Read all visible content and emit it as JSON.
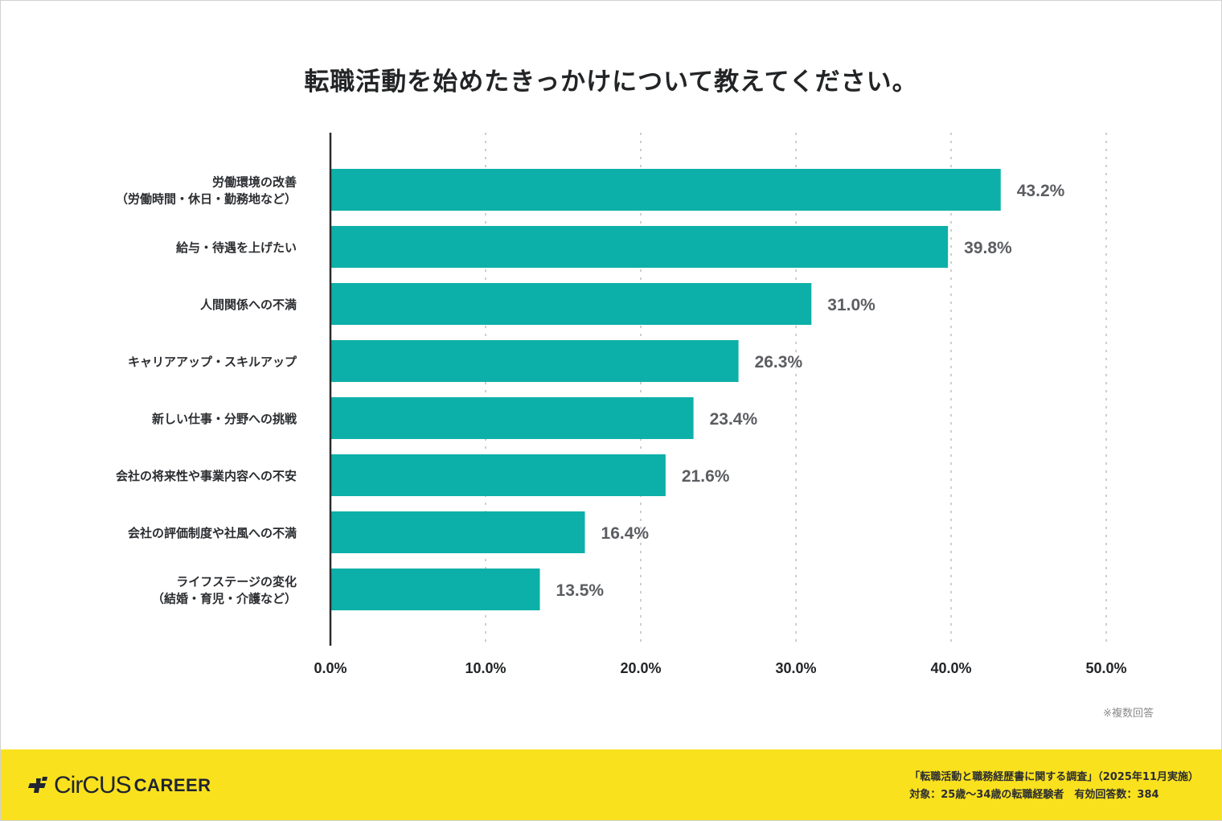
{
  "title": "転職活動を始めたきっかけについて教えてください。",
  "note": "※複数回答",
  "footer": {
    "logo_main": "CirCUS",
    "logo_sub": "CAREER",
    "source_line1": "「転職活動と職務経歴書に関する調査」（2025年11月実施）",
    "source_line2": "対象：25歳〜34歳の転職経験者　有効回答数：384"
  },
  "colors": {
    "bar": "#0db0a8",
    "footer_bg": "#fae11e"
  },
  "chart_data": {
    "type": "bar",
    "orientation": "horizontal",
    "title": "転職活動を始めたきっかけについて教えてください。",
    "xlabel": "",
    "ylabel": "",
    "xlim": [
      0,
      50
    ],
    "grid": true,
    "x_ticks": [
      "0.0%",
      "10.0%",
      "20.0%",
      "30.0%",
      "40.0%",
      "50.0%"
    ],
    "x_tick_values": [
      0,
      10,
      20,
      30,
      40,
      50
    ],
    "categories": [
      [
        "労働環境の改善",
        "（労働時間・休日・勤務地など）"
      ],
      [
        "給与・待遇を上げたい"
      ],
      [
        "人間関係への不満"
      ],
      [
        "キャリアアップ・スキルアップ"
      ],
      [
        "新しい仕事・分野への挑戦"
      ],
      [
        "会社の将来性や事業内容への不安"
      ],
      [
        "会社の評価制度や社風への不満"
      ],
      [
        "ライフステージの変化",
        "（結婚・育児・介護など）"
      ]
    ],
    "values": [
      43.2,
      39.8,
      31.0,
      26.3,
      23.4,
      21.6,
      16.4,
      13.5
    ],
    "value_labels": [
      "43.2%",
      "39.8%",
      "31.0%",
      "26.3%",
      "23.4%",
      "21.6%",
      "16.4%",
      "13.5%"
    ],
    "unit": "%"
  }
}
